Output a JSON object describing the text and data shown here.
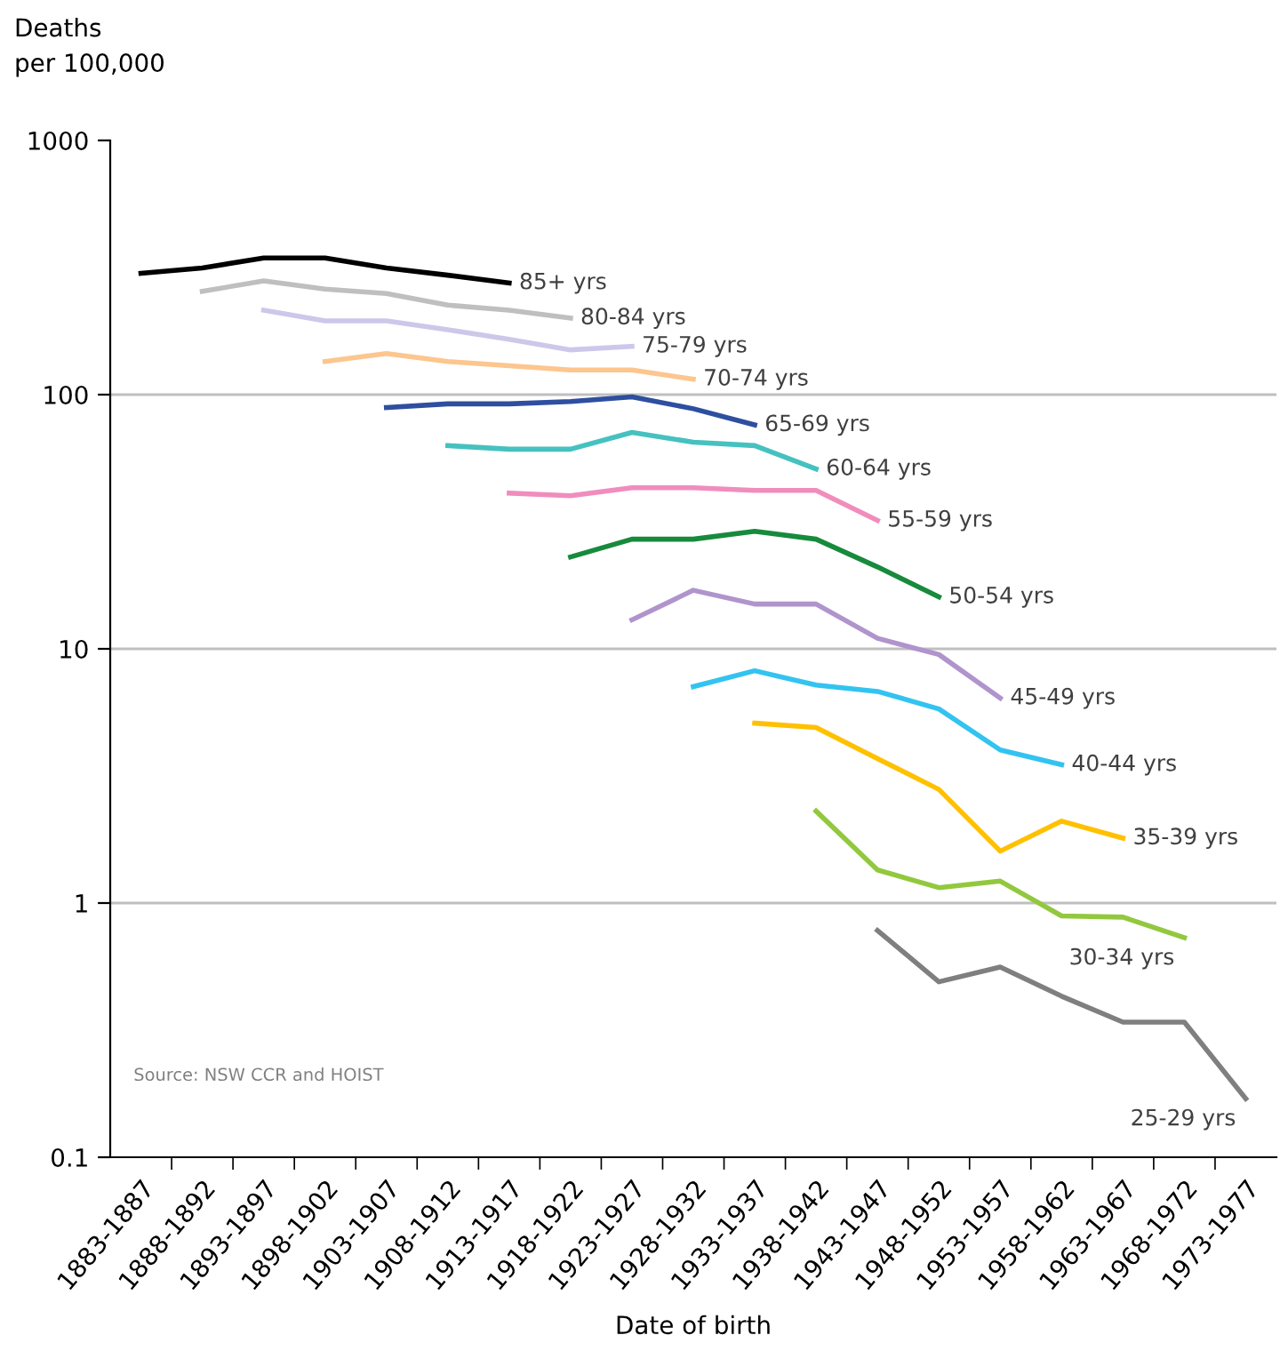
{
  "chart_data": {
    "type": "line",
    "ylabel": "Deaths\nper 100,000",
    "xlabel": "Date of birth",
    "categories": [
      "1883-1887",
      "1888-1892",
      "1893-1897",
      "1898-1902",
      "1903-1907",
      "1908-1912",
      "1913-1917",
      "1918-1922",
      "1923-1927",
      "1928-1932",
      "1933-1937",
      "1938-1942",
      "1943-1947",
      "1948-1952",
      "1953-1957",
      "1958-1962",
      "1963-1967",
      "1968-1972",
      "1973-1977"
    ],
    "log": "y",
    "ylim": [
      0.1,
      1000
    ],
    "yticks": [
      {
        "value": 0.1,
        "label": "0.1"
      },
      1,
      10,
      100,
      1000
    ],
    "grid": "y",
    "marker": "none",
    "line_style": "solid",
    "legend": false,
    "series": [
      {
        "name": "85+ yrs",
        "color": "#000000",
        "values": [
          300,
          315,
          345,
          345,
          315,
          295,
          275,
          null,
          null,
          null,
          null,
          null,
          null,
          null,
          null,
          null,
          null,
          null,
          null
        ]
      },
      {
        "name": "80-84 yrs",
        "color": "#bfbfbf",
        "values": [
          null,
          255,
          280,
          260,
          250,
          225,
          215,
          200,
          null,
          null,
          null,
          null,
          null,
          null,
          null,
          null,
          null,
          null,
          null
        ]
      },
      {
        "name": "75-79 yrs",
        "color": "#cdc8ea",
        "values": [
          null,
          null,
          215,
          195,
          195,
          180,
          165,
          150,
          155,
          null,
          null,
          null,
          null,
          null,
          null,
          null,
          null,
          null,
          null
        ]
      },
      {
        "name": "70-74 yrs",
        "color": "#fcc68e",
        "values": [
          null,
          null,
          null,
          135,
          145,
          135,
          130,
          125,
          125,
          115,
          null,
          null,
          null,
          null,
          null,
          null,
          null,
          null,
          null
        ]
      },
      {
        "name": "65-69 yrs",
        "color": "#2e4fa0",
        "values": [
          null,
          null,
          null,
          null,
          89,
          92,
          92,
          94,
          98,
          88,
          76,
          null,
          null,
          null,
          null,
          null,
          null,
          null,
          null
        ]
      },
      {
        "name": "60-64 yrs",
        "color": "#45c1c0",
        "values": [
          null,
          null,
          null,
          null,
          null,
          63,
          61,
          61,
          71,
          65,
          63,
          51,
          null,
          null,
          null,
          null,
          null,
          null,
          null
        ]
      },
      {
        "name": "55-59 yrs",
        "color": "#f08dbd",
        "values": [
          null,
          null,
          null,
          null,
          null,
          null,
          41,
          40,
          43,
          43,
          42,
          42,
          32,
          null,
          null,
          null,
          null,
          null,
          null
        ]
      },
      {
        "name": "50-54 yrs",
        "color": "#178a3c",
        "values": [
          null,
          null,
          null,
          null,
          null,
          null,
          null,
          23,
          27,
          27,
          29,
          27,
          21,
          16,
          null,
          null,
          null,
          null,
          null
        ]
      },
      {
        "name": "45-49 yrs",
        "color": "#b094cc",
        "values": [
          null,
          null,
          null,
          null,
          null,
          null,
          null,
          null,
          13,
          17,
          15,
          15,
          11,
          9.5,
          6.4,
          null,
          null,
          null,
          null
        ]
      },
      {
        "name": "40-44 yrs",
        "color": "#33c3f0",
        "values": [
          null,
          null,
          null,
          null,
          null,
          null,
          null,
          null,
          null,
          7.1,
          8.2,
          7.2,
          6.8,
          5.8,
          4.0,
          3.5,
          null,
          null,
          null
        ]
      },
      {
        "name": "35-39 yrs",
        "color": "#ffc000",
        "values": [
          null,
          null,
          null,
          null,
          null,
          null,
          null,
          null,
          null,
          null,
          5.1,
          4.9,
          3.7,
          2.8,
          1.6,
          2.1,
          1.8,
          null,
          null
        ]
      },
      {
        "name": "30-34 yrs",
        "color": "#92c83e",
        "values": [
          null,
          null,
          null,
          null,
          null,
          null,
          null,
          null,
          null,
          null,
          null,
          2.3,
          1.35,
          1.15,
          1.22,
          0.89,
          0.88,
          0.73,
          null
        ]
      },
      {
        "name": "25-29 yrs",
        "color": "#7f7f7f",
        "values": [
          null,
          null,
          null,
          null,
          null,
          null,
          null,
          null,
          null,
          null,
          null,
          null,
          0.78,
          0.49,
          0.56,
          0.43,
          0.34,
          0.34,
          0.17
        ]
      }
    ],
    "annotations": [
      "Source: NSW CCR and HOIST"
    ]
  }
}
